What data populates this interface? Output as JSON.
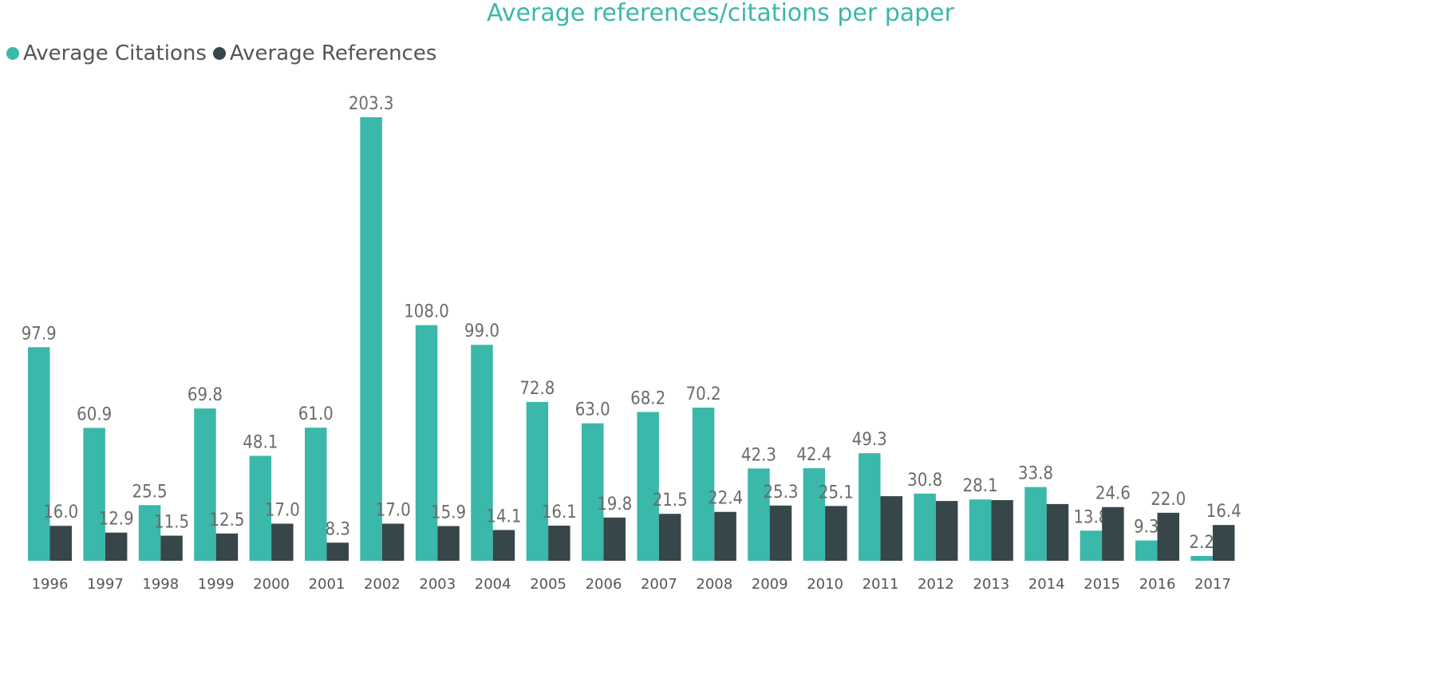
{
  "chart_data": {
    "type": "bar",
    "title": "Average references/citations per paper",
    "legend_position": "top-left",
    "grid": false,
    "categories": [
      "1996",
      "1997",
      "1998",
      "1999",
      "2000",
      "2001",
      "2002",
      "2003",
      "2004",
      "2005",
      "2006",
      "2007",
      "2008",
      "2009",
      "2010",
      "2011",
      "2012",
      "2013",
      "2014",
      "2015",
      "2016",
      "2017"
    ],
    "series": [
      {
        "name": "Average Citations",
        "color": "#3AB8AA",
        "values": [
          97.9,
          60.9,
          25.5,
          69.8,
          48.1,
          61.0,
          203.3,
          108.0,
          99.0,
          72.8,
          63.0,
          68.2,
          70.2,
          42.3,
          42.4,
          49.3,
          30.8,
          28.1,
          33.8,
          13.8,
          9.3,
          2.2
        ],
        "labels_shown": [
          true,
          true,
          true,
          true,
          true,
          true,
          true,
          true,
          true,
          true,
          true,
          true,
          true,
          true,
          true,
          true,
          true,
          true,
          true,
          true,
          true,
          true
        ]
      },
      {
        "name": "Average References",
        "color": "#374649",
        "values": [
          16.0,
          12.9,
          11.5,
          12.5,
          17.0,
          8.3,
          17.0,
          15.9,
          14.1,
          16.1,
          19.8,
          21.5,
          22.4,
          25.3,
          25.1,
          29.6,
          27.4,
          27.8,
          26.0,
          24.6,
          22.0,
          16.4
        ],
        "labels_shown": [
          true,
          true,
          true,
          true,
          true,
          true,
          true,
          true,
          true,
          true,
          true,
          true,
          true,
          true,
          true,
          false,
          false,
          false,
          false,
          true,
          true,
          true
        ]
      }
    ],
    "ylim": [
      0,
      203.3
    ]
  }
}
